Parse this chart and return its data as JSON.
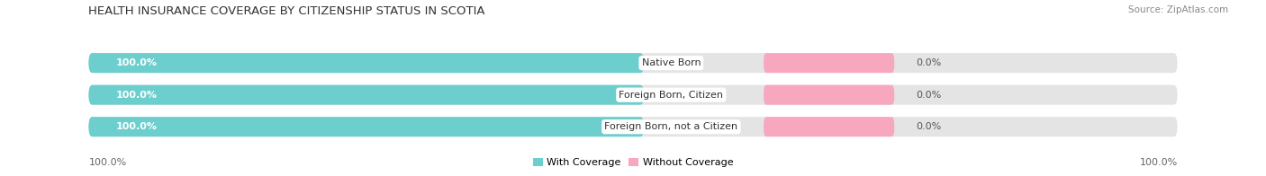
{
  "title": "HEALTH INSURANCE COVERAGE BY CITIZENSHIP STATUS IN SCOTIA",
  "source": "Source: ZipAtlas.com",
  "categories": [
    "Native Born",
    "Foreign Born, Citizen",
    "Foreign Born, not a Citizen"
  ],
  "with_coverage": [
    100.0,
    100.0,
    100.0
  ],
  "without_coverage": [
    0.0,
    0.0,
    0.0
  ],
  "color_with": "#6dcece",
  "color_without": "#f7a8bf",
  "bar_bg_color": "#e4e4e4",
  "fig_bg": "#ffffff",
  "title_fontsize": 9.5,
  "label_fontsize": 8,
  "tick_fontsize": 8,
  "legend_fontsize": 8,
  "source_fontsize": 7.5,
  "x_left_label": "100.0%",
  "x_right_label": "100.0%"
}
